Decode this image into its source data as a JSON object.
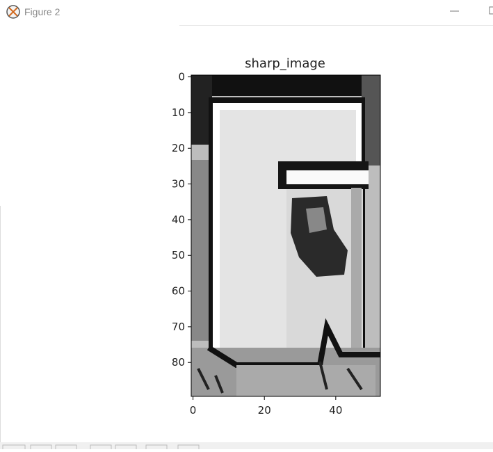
{
  "window": {
    "title": "Figure 2"
  },
  "chart_data": {
    "type": "image",
    "title": "sharp_image",
    "xlim": [
      -0.5,
      52.5
    ],
    "ylim": [
      89.5,
      -0.5
    ],
    "xticks": [
      0,
      20,
      40
    ],
    "yticks": [
      0,
      10,
      20,
      30,
      40,
      50,
      60,
      70,
      80
    ]
  }
}
